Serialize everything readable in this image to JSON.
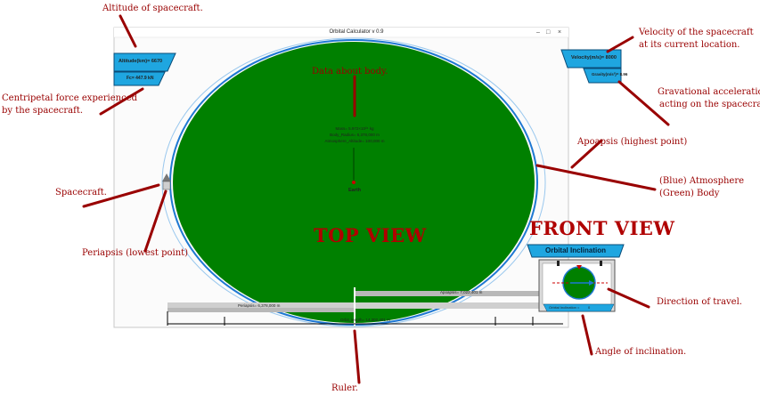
{
  "window": {
    "title": "Orbital Calculator v 0.9",
    "controls": {
      "minimize": "–",
      "maximize": "□",
      "close": "×"
    }
  },
  "hud": {
    "altitude": "Altitude(km)= 6670",
    "centripetal_force": "Fc= 447.9 kN",
    "velocity": "Velocity(m/s)= 8000",
    "gravity": "Gravity(m/s²)= 8.96"
  },
  "body": {
    "mass": "Mass= 5.972×10²⁴ kg",
    "radius": "Body_Radius= 6,378,000 m",
    "atmosphere": "Atmosphere_Altitude= 100,000 m",
    "name": "Earth"
  },
  "ruler": {
    "periapsis": "Periapsis= 6,378,000 m",
    "apoapsis": "Apoapsis= 7,022,401 m",
    "orbit_length": "Orbit_length= 14,302,401 m"
  },
  "inclination": {
    "header": "Orbital Inclination",
    "footer": "Orbital Inclination =",
    "value": "0"
  },
  "labels": {
    "top_view": "TOP VIEW",
    "front_view": "FRONT VIEW"
  },
  "annotations": {
    "altitude": "Altitude of spacecraft.",
    "velocity_l1": "Velocity of the spacecraft",
    "velocity_l2": "at its current location.",
    "centripetal_l1": "Centripetal force experienced",
    "centripetal_l2": "by the spacecraft.",
    "gravity_l1": "Gravational acceleration",
    "gravity_l2": "acting on the spacecraft.",
    "data_body": "Data about body.",
    "apoapsis": "Apoapsis (highest point)",
    "atmo_l1": "(Blue) Atmosphere",
    "atmo_l2": "(Green) Body",
    "spacecraft": "Spacecraft.",
    "periapsis": "Periapsis (lowest point)",
    "direction": "Direction of travel.",
    "angle": "Angle of inclination.",
    "ruler": "Ruler."
  },
  "colors": {
    "body": "#008000",
    "atmosphere": "#1e78d2",
    "annotation": "#990000",
    "hud_panel": "#1fa6e0"
  }
}
